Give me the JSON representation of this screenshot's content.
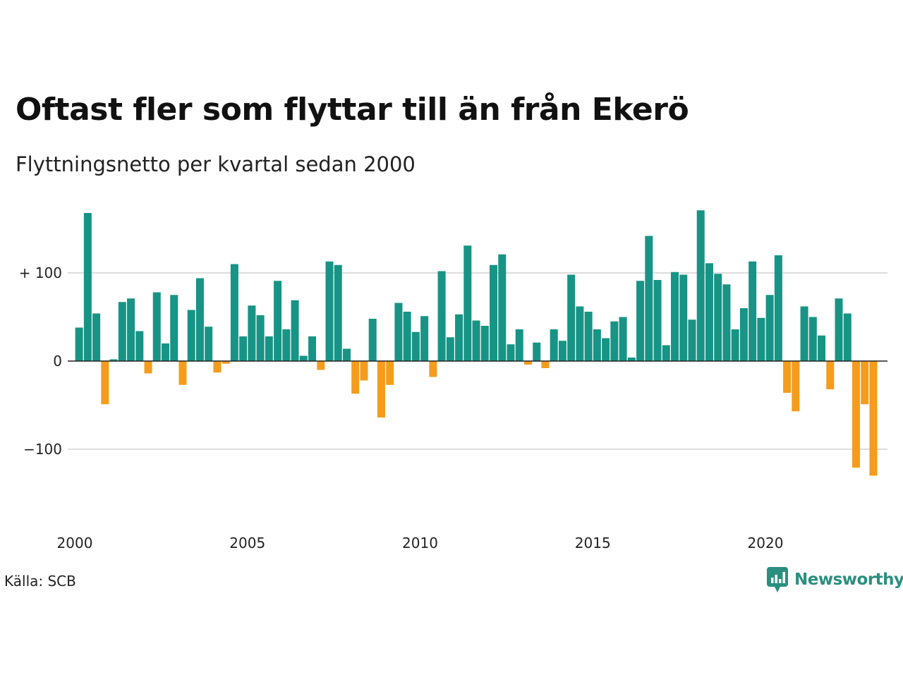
{
  "header": {
    "title": "Oftast fler som flyttar till än från Ekerö",
    "subtitle": "Flyttningsnetto per kvartal sedan 2000"
  },
  "footer": {
    "source": "Källa: SCB",
    "brand": "Newsworthy",
    "brand_icon": "newsworthy-chart-bubble-icon"
  },
  "colors": {
    "positive": "#179485",
    "negative": "#f59c1c",
    "grid": "#dddddd",
    "zero_line": "#222222",
    "brand": "#2a8f7f"
  },
  "chart_data": {
    "type": "bar",
    "start_year": 2000,
    "start_quarter": 1,
    "frequency": "quarterly",
    "ylim": [
      -145,
      175
    ],
    "yticks": [
      {
        "value": 100,
        "label": "+ 100"
      },
      {
        "value": 0,
        "label": "0"
      },
      {
        "value": -100,
        "label": "−100"
      }
    ],
    "xticks": [
      {
        "value": 2000,
        "label": "2000"
      },
      {
        "value": 2005,
        "label": "2005"
      },
      {
        "value": 2010,
        "label": "2010"
      },
      {
        "value": 2015,
        "label": "2015"
      },
      {
        "value": 2020,
        "label": "2020"
      }
    ],
    "values": [
      38,
      168,
      54,
      -49,
      2,
      67,
      71,
      34,
      -14,
      78,
      20,
      75,
      -27,
      58,
      94,
      39,
      -13,
      -3,
      110,
      28,
      63,
      52,
      28,
      91,
      36,
      69,
      6,
      28,
      -10,
      113,
      109,
      14,
      -37,
      -22,
      48,
      -64,
      -27,
      66,
      56,
      33,
      51,
      -18,
      102,
      27,
      53,
      131,
      46,
      40,
      109,
      121,
      19,
      36,
      -4,
      21,
      -8,
      36,
      23,
      98,
      62,
      56,
      36,
      26,
      45,
      50,
      4,
      91,
      142,
      92,
      18,
      101,
      98,
      47,
      171,
      111,
      99,
      87,
      36,
      60,
      113,
      49,
      75,
      120,
      -36,
      -57,
      62,
      50,
      29,
      -32,
      71,
      54,
      -121,
      -49,
      -130
    ]
  }
}
